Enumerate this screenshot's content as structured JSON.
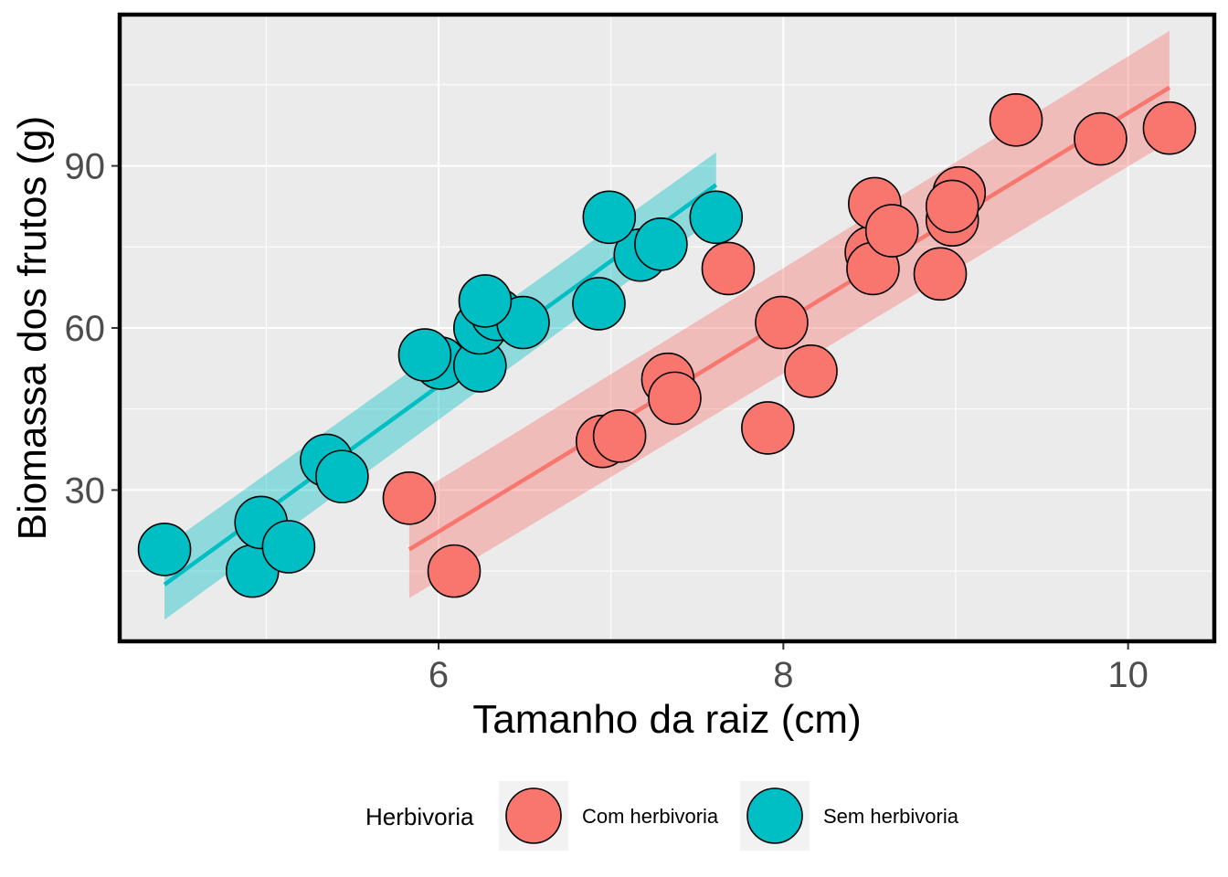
{
  "chart_data": {
    "type": "scatter",
    "title": "",
    "xlabel": "Tamanho da raiz (cm)",
    "ylabel": "Biomassa dos frutos (g)",
    "xlim": [
      4.15,
      10.5
    ],
    "ylim": [
      2,
      118
    ],
    "x_ticks": [
      6,
      8,
      10
    ],
    "x_minor_ticks": [
      5,
      7,
      9
    ],
    "y_ticks": [
      30,
      60,
      90
    ],
    "y_minor_ticks": [
      15,
      45,
      75,
      105
    ],
    "grid": true,
    "legend": {
      "title": "Herbivoria",
      "position": "bottom",
      "entries": [
        "Com herbivoria",
        "Sem herbivoria"
      ]
    },
    "series": [
      {
        "name": "Com herbivoria",
        "color": "#F8766D",
        "points": [
          {
            "x": 5.83,
            "y": 28.5
          },
          {
            "x": 6.09,
            "y": 15.0
          },
          {
            "x": 6.95,
            "y": 39.0
          },
          {
            "x": 7.05,
            "y": 40.0
          },
          {
            "x": 7.33,
            "y": 50.5
          },
          {
            "x": 7.37,
            "y": 47.0
          },
          {
            "x": 7.68,
            "y": 71.0
          },
          {
            "x": 7.91,
            "y": 41.5
          },
          {
            "x": 7.99,
            "y": 61.0
          },
          {
            "x": 8.16,
            "y": 52.0
          },
          {
            "x": 8.51,
            "y": 74.0
          },
          {
            "x": 8.53,
            "y": 83.0
          },
          {
            "x": 8.52,
            "y": 71.0
          },
          {
            "x": 8.63,
            "y": 78.0
          },
          {
            "x": 8.91,
            "y": 70.0
          },
          {
            "x": 8.98,
            "y": 80.0
          },
          {
            "x": 9.02,
            "y": 85.0
          },
          {
            "x": 8.98,
            "y": 82.5
          },
          {
            "x": 9.35,
            "y": 98.5
          },
          {
            "x": 9.84,
            "y": 95.0
          },
          {
            "x": 10.24,
            "y": 97.0
          }
        ],
        "fit": {
          "x": [
            5.83,
            10.24
          ],
          "y": [
            19.0,
            104.5
          ],
          "ci_lower": [
            10.0,
            94.5
          ],
          "ci_upper": [
            28.5,
            115.0
          ]
        }
      },
      {
        "name": "Sem herbivoria",
        "color": "#00BFC4",
        "points": [
          {
            "x": 4.41,
            "y": 19.0
          },
          {
            "x": 4.92,
            "y": 15.0
          },
          {
            "x": 4.97,
            "y": 24.0
          },
          {
            "x": 5.13,
            "y": 19.5
          },
          {
            "x": 5.35,
            "y": 35.5
          },
          {
            "x": 5.44,
            "y": 32.5
          },
          {
            "x": 6.01,
            "y": 53.5
          },
          {
            "x": 5.92,
            "y": 55.0
          },
          {
            "x": 6.24,
            "y": 53.0
          },
          {
            "x": 6.24,
            "y": 60.0
          },
          {
            "x": 6.34,
            "y": 62.5
          },
          {
            "x": 6.49,
            "y": 61.0
          },
          {
            "x": 6.27,
            "y": 65.0
          },
          {
            "x": 6.93,
            "y": 64.5
          },
          {
            "x": 7.17,
            "y": 73.5
          },
          {
            "x": 6.99,
            "y": 80.5
          },
          {
            "x": 7.29,
            "y": 75.5
          },
          {
            "x": 7.61,
            "y": 80.5
          }
        ],
        "fit": {
          "x": [
            4.41,
            7.61
          ],
          "y": [
            12.5,
            86.5
          ],
          "ci_lower": [
            6.0,
            80.5
          ],
          "ci_upper": [
            19.5,
            92.5
          ]
        }
      }
    ]
  }
}
